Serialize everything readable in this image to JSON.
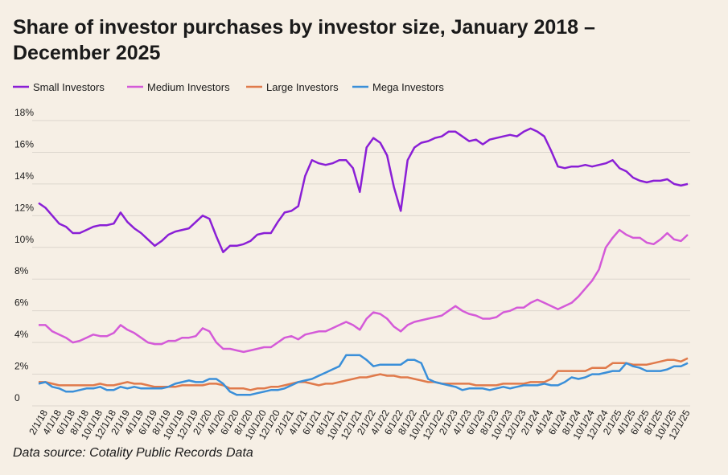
{
  "chart_data": {
    "type": "line",
    "title": "Share of investor purchases by investor size, January 2018 – December 2025",
    "source": "Data source: Cotality Public Records Data",
    "categories": [
      null,
      "2/1/18",
      null,
      "4/1/18",
      null,
      "6/1/18",
      null,
      "8/1/18",
      null,
      "10/1/18",
      null,
      "12/1/18",
      null,
      "2/1/19",
      null,
      "4/1/19",
      null,
      "6/1/19",
      null,
      "8/1/19",
      null,
      "10/1/19",
      null,
      "12/1/19",
      null,
      "2/1/20",
      null,
      "4/1/20",
      null,
      "6/1/20",
      null,
      "8/1/20",
      null,
      "10/1/20",
      null,
      "12/1/20",
      null,
      "2/1/21",
      null,
      "4/1/21",
      null,
      "6/1/21",
      null,
      "8/1/21",
      null,
      "10/1/21",
      null,
      "12/1/21",
      null,
      "2/1/22",
      null,
      "4/1/22",
      null,
      "6/1/22",
      null,
      "8/1/22",
      null,
      "10/1/22",
      null,
      "12/1/22",
      null,
      "2/1/23",
      null,
      "4/1/23",
      null,
      "6/1/23",
      null,
      "8/1/23",
      null,
      "10/1/23",
      null,
      "12/1/23",
      null,
      "2/1/24",
      null,
      "4/1/24",
      null,
      "6/1/24",
      null,
      "8/1/24",
      null,
      "10/1/24",
      null,
      "12/1/24",
      null,
      "2/1/25",
      null,
      "4/1/25",
      null,
      "6/1/25",
      null,
      "8/1/25",
      null,
      "10/1/25",
      null,
      "12/1/25"
    ],
    "series": [
      {
        "name": "Small Investors",
        "color": "#8a1fd6",
        "values": [
          12.8,
          12.5,
          12.0,
          11.5,
          11.3,
          10.9,
          10.9,
          11.1,
          11.3,
          11.4,
          11.4,
          11.5,
          12.2,
          11.6,
          11.2,
          10.9,
          10.5,
          10.1,
          10.4,
          10.8,
          11.0,
          11.1,
          11.2,
          11.6,
          12.0,
          11.8,
          10.7,
          9.7,
          10.1,
          10.1,
          10.2,
          10.4,
          10.8,
          10.9,
          10.9,
          11.6,
          12.2,
          12.3,
          12.6,
          14.5,
          15.5,
          15.3,
          15.2,
          15.3,
          15.5,
          15.5,
          15.0,
          13.5,
          16.3,
          16.9,
          16.6,
          15.8,
          13.8,
          12.3,
          15.5,
          16.3,
          16.6,
          16.7,
          16.9,
          17.0,
          17.3,
          17.3,
          17.0,
          16.7,
          16.8,
          16.5,
          16.8,
          16.9,
          17.0,
          17.1,
          17.0,
          17.3,
          17.5,
          17.3,
          17.0,
          16.1,
          15.1,
          15.0,
          15.1,
          15.1,
          15.2,
          15.1,
          15.2,
          15.3,
          15.5,
          15.0,
          14.8,
          14.4,
          14.2,
          14.1,
          14.2,
          14.2,
          14.3,
          14.0,
          13.9,
          14.0
        ]
      },
      {
        "name": "Medium Investors",
        "color": "#d45ad8",
        "values": [
          5.1,
          5.1,
          4.7,
          4.5,
          4.3,
          4.0,
          4.1,
          4.3,
          4.5,
          4.4,
          4.4,
          4.6,
          5.1,
          4.8,
          4.6,
          4.3,
          4.0,
          3.9,
          3.9,
          4.1,
          4.1,
          4.3,
          4.3,
          4.4,
          4.9,
          4.7,
          4.0,
          3.6,
          3.6,
          3.5,
          3.4,
          3.5,
          3.6,
          3.7,
          3.7,
          4.0,
          4.3,
          4.4,
          4.2,
          4.5,
          4.6,
          4.7,
          4.7,
          4.9,
          5.1,
          5.3,
          5.1,
          4.8,
          5.5,
          5.9,
          5.8,
          5.5,
          5.0,
          4.7,
          5.1,
          5.3,
          5.4,
          5.5,
          5.6,
          5.7,
          6.0,
          6.3,
          6.0,
          5.8,
          5.7,
          5.5,
          5.5,
          5.6,
          5.9,
          6.0,
          6.2,
          6.2,
          6.5,
          6.7,
          6.5,
          6.3,
          6.1,
          6.3,
          6.5,
          6.9,
          7.4,
          7.9,
          8.6,
          10.0,
          10.6,
          11.1,
          10.8,
          10.6,
          10.6,
          10.3,
          10.2,
          10.5,
          10.9,
          10.5,
          10.4,
          10.8
        ]
      },
      {
        "name": "Large Investors",
        "color": "#e07a4b",
        "values": [
          1.5,
          1.5,
          1.4,
          1.3,
          1.3,
          1.3,
          1.3,
          1.3,
          1.3,
          1.4,
          1.3,
          1.3,
          1.4,
          1.5,
          1.4,
          1.4,
          1.3,
          1.2,
          1.2,
          1.2,
          1.2,
          1.3,
          1.3,
          1.3,
          1.3,
          1.4,
          1.4,
          1.3,
          1.1,
          1.1,
          1.1,
          1.0,
          1.1,
          1.1,
          1.2,
          1.2,
          1.3,
          1.4,
          1.5,
          1.5,
          1.4,
          1.3,
          1.4,
          1.4,
          1.5,
          1.6,
          1.7,
          1.8,
          1.8,
          1.9,
          2.0,
          1.9,
          1.9,
          1.8,
          1.8,
          1.7,
          1.6,
          1.5,
          1.5,
          1.4,
          1.4,
          1.4,
          1.4,
          1.4,
          1.3,
          1.3,
          1.3,
          1.3,
          1.4,
          1.4,
          1.4,
          1.4,
          1.5,
          1.5,
          1.5,
          1.7,
          2.2,
          2.2,
          2.2,
          2.2,
          2.2,
          2.4,
          2.4,
          2.4,
          2.7,
          2.7,
          2.7,
          2.6,
          2.6,
          2.6,
          2.7,
          2.8,
          2.9,
          2.9,
          2.8,
          3.0
        ]
      },
      {
        "name": "Mega Investors",
        "color": "#3a8fd9",
        "values": [
          1.4,
          1.5,
          1.2,
          1.1,
          0.9,
          0.9,
          1.0,
          1.1,
          1.1,
          1.2,
          1.0,
          1.0,
          1.2,
          1.1,
          1.2,
          1.1,
          1.1,
          1.1,
          1.1,
          1.2,
          1.4,
          1.5,
          1.6,
          1.5,
          1.5,
          1.7,
          1.7,
          1.4,
          0.9,
          0.7,
          0.7,
          0.7,
          0.8,
          0.9,
          1.0,
          1.0,
          1.1,
          1.3,
          1.5,
          1.6,
          1.7,
          1.9,
          2.1,
          2.3,
          2.5,
          3.2,
          3.2,
          3.2,
          2.9,
          2.5,
          2.6,
          2.6,
          2.6,
          2.6,
          2.9,
          2.9,
          2.7,
          1.7,
          1.5,
          1.4,
          1.3,
          1.2,
          1.0,
          1.1,
          1.1,
          1.1,
          1.0,
          1.1,
          1.2,
          1.1,
          1.2,
          1.3,
          1.3,
          1.3,
          1.4,
          1.3,
          1.3,
          1.5,
          1.8,
          1.7,
          1.8,
          2.0,
          2.0,
          2.1,
          2.2,
          2.2,
          2.7,
          2.5,
          2.4,
          2.2,
          2.2,
          2.2,
          2.3,
          2.5,
          2.5,
          2.7
        ]
      }
    ],
    "ylim": [
      0,
      18
    ],
    "yticks": [
      0,
      {
        "value": 2,
        "label": "2%"
      },
      {
        "value": 4,
        "label": "4%"
      },
      {
        "value": 6,
        "label": "6%"
      },
      {
        "value": 8,
        "label": "8%"
      },
      {
        "value": 10,
        "label": "10%"
      },
      {
        "value": 12,
        "label": "12%"
      },
      {
        "value": 14,
        "label": "14%"
      },
      {
        "value": 16,
        "label": "16%"
      },
      {
        "value": 18,
        "label": "18%"
      }
    ],
    "grid": true
  }
}
